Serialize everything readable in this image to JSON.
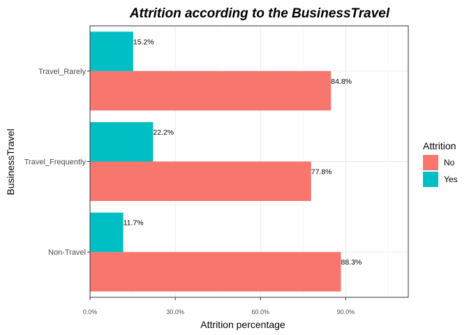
{
  "chart_data": {
    "type": "bar",
    "orientation": "horizontal",
    "title": "Attrition according to the BusinessTravel",
    "xlabel": "Attrition percentage",
    "ylabel": "BusinessTravel",
    "categories": [
      "Non-Travel",
      "Travel_Frequently",
      "Travel_Rarely"
    ],
    "series": [
      {
        "name": "No",
        "color": "#F8766D",
        "values": [
          88.3,
          77.8,
          84.8
        ],
        "labels": [
          "88.3%",
          "77.8%",
          "84.8%"
        ]
      },
      {
        "name": "Yes",
        "color": "#00BFC4",
        "values": [
          11.7,
          22.2,
          15.2
        ],
        "labels": [
          "11.7%",
          "22.2%",
          "15.2%"
        ]
      }
    ],
    "xlim": [
      0,
      112
    ],
    "xticks": [
      0,
      30,
      60,
      90
    ],
    "xtick_labels": [
      "0.0%",
      "30.0%",
      "60.0%",
      "90.0%"
    ],
    "grid": true,
    "legend": {
      "title": "Attrition",
      "placement": "right",
      "entries": [
        "No",
        "Yes"
      ]
    }
  }
}
